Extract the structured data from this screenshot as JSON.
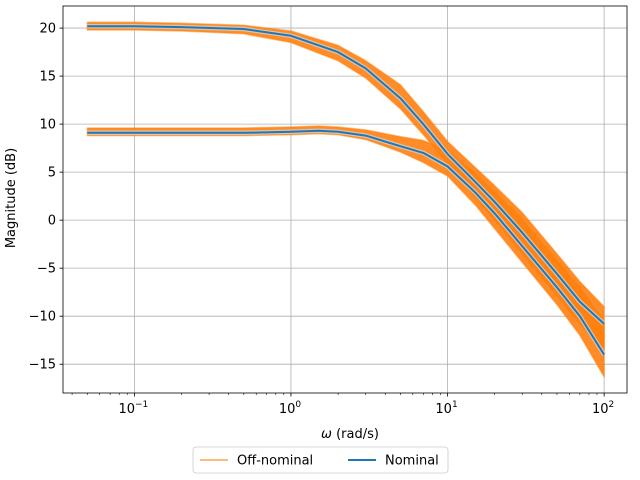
{
  "chart_data": {
    "type": "line",
    "xscale": "log",
    "xlabel_symbol": "ω",
    "xlabel_unit": " (rad/s)",
    "ylabel": "Magnitude (dB)",
    "xlim": [
      0.035,
      140
    ],
    "ylim": [
      -18,
      22.3
    ],
    "xticks": [
      {
        "value": 0.1,
        "mant": "10",
        "exp": "−1"
      },
      {
        "value": 1,
        "mant": "10",
        "exp": "0"
      },
      {
        "value": 10,
        "mant": "10",
        "exp": "1"
      },
      {
        "value": 100,
        "mant": "10",
        "exp": "2"
      }
    ],
    "yticks": [
      {
        "value": 20,
        "label": "20"
      },
      {
        "value": 15,
        "label": "15"
      },
      {
        "value": 10,
        "label": "10"
      },
      {
        "value": 5,
        "label": "5"
      },
      {
        "value": 0,
        "label": "0"
      },
      {
        "value": -5,
        "label": "−5"
      },
      {
        "value": -10,
        "label": "−10"
      },
      {
        "value": -15,
        "label": "−15"
      }
    ],
    "grid": true,
    "legend": {
      "placement": "below-center",
      "ncol": 2
    },
    "series": [
      {
        "name": "Off-nominal",
        "color": "#ff7f0e",
        "kind": "band",
        "curves": [
          {
            "x": [
              0.05,
              0.1,
              0.2,
              0.5,
              1,
              2,
              3,
              5,
              7,
              10,
              15,
              20,
              30,
              50,
              70,
              100
            ],
            "upper": [
              20.6,
              20.6,
              20.5,
              20.3,
              19.7,
              18.2,
              16.6,
              14.1,
              11.3,
              8.2,
              5.5,
              3.6,
              0.8,
              -3.5,
              -6.4,
              -9.0
            ],
            "lower": [
              19.8,
              19.8,
              19.7,
              19.4,
              18.5,
              16.6,
              14.8,
              11.6,
              8.9,
              5.9,
              2.4,
              0.0,
              -3.5,
              -7.9,
              -10.8,
              -13.5
            ]
          },
          {
            "x": [
              0.05,
              0.1,
              0.2,
              0.5,
              1,
              1.5,
              2,
              3,
              5,
              7,
              10,
              15,
              20,
              30,
              50,
              70,
              100
            ],
            "upper": [
              9.6,
              9.6,
              9.6,
              9.6,
              9.7,
              9.8,
              9.7,
              9.4,
              8.7,
              8.3,
              7.2,
              4.9,
              2.9,
              0.1,
              -4.2,
              -7.0,
              -10.5
            ],
            "lower": [
              8.8,
              8.8,
              8.8,
              8.8,
              8.9,
              9.0,
              8.9,
              8.4,
              7.1,
              6.0,
              4.6,
              1.6,
              -0.9,
              -4.4,
              -8.8,
              -12.0,
              -16.3
            ]
          }
        ]
      },
      {
        "name": "Nominal",
        "color": "#1f77b4",
        "kind": "line",
        "curves": [
          {
            "x": [
              0.05,
              0.1,
              0.2,
              0.5,
              1,
              2,
              3,
              5,
              7,
              10,
              15,
              20,
              30,
              50,
              70,
              100
            ],
            "y": [
              20.2,
              20.2,
              20.1,
              19.9,
              19.2,
              17.5,
              15.8,
              12.7,
              10.0,
              6.9,
              4.0,
              1.9,
              -1.3,
              -5.6,
              -8.5,
              -10.8
            ]
          },
          {
            "x": [
              0.05,
              0.1,
              0.2,
              0.5,
              1,
              1.5,
              2,
              3,
              5,
              7,
              10,
              15,
              20,
              30,
              50,
              70,
              100
            ],
            "y": [
              9.1,
              9.1,
              9.1,
              9.1,
              9.2,
              9.3,
              9.2,
              8.8,
              7.7,
              7.0,
              5.6,
              2.9,
              0.7,
              -2.7,
              -7.0,
              -10.0,
              -14.0
            ]
          }
        ]
      }
    ]
  }
}
